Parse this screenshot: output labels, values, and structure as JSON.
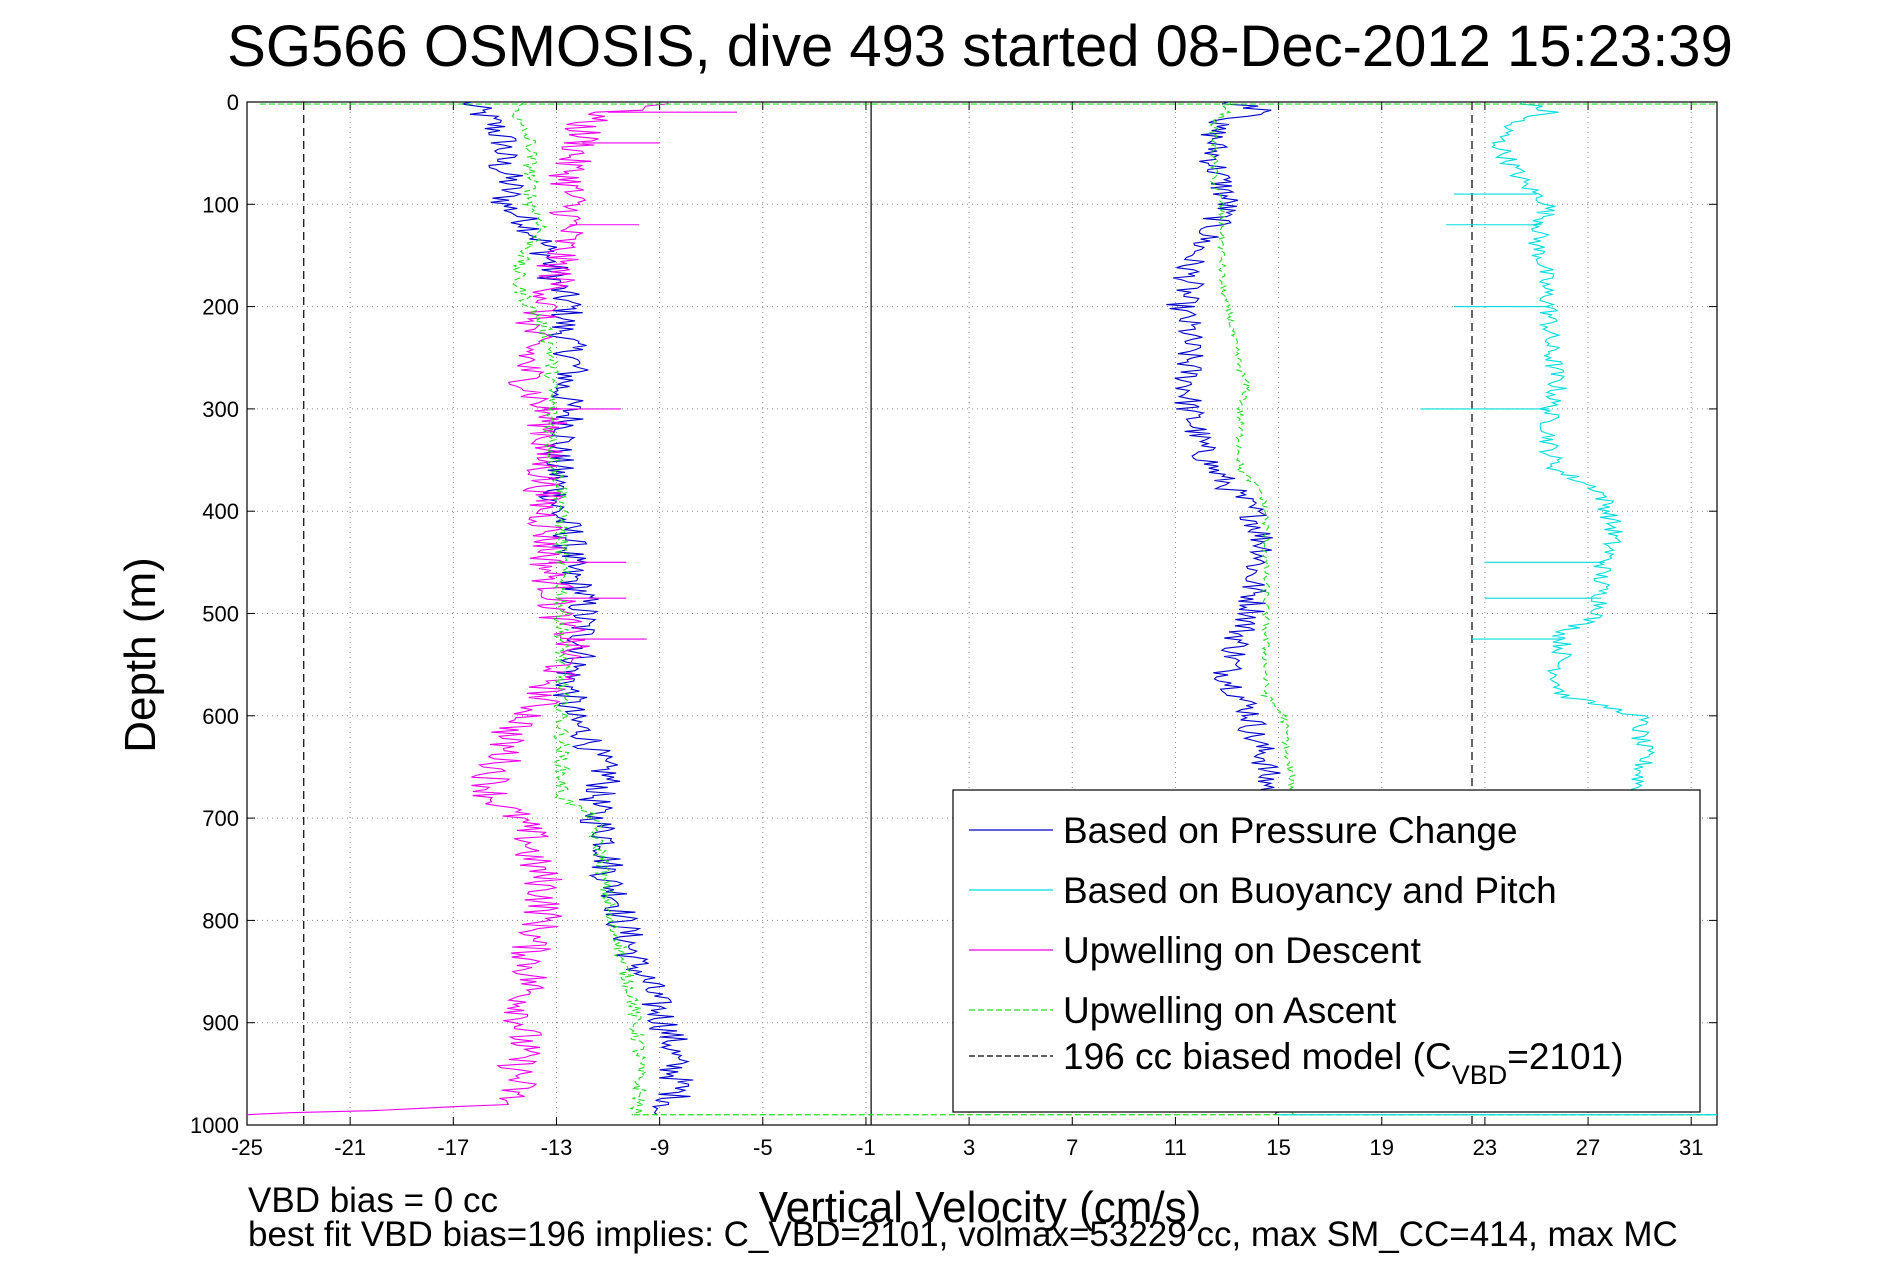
{
  "chart_data": {
    "type": "line",
    "title": "SG566 OSMOSIS, dive 493 started 08-Dec-2012 15:23:39",
    "xlabel": "Vertical Velocity (cm/s)",
    "ylabel": "Depth (m)",
    "xlim": [
      -25,
      32
    ],
    "ylim": [
      1000,
      0
    ],
    "y_reversed": true,
    "grid": true,
    "x_ticks": [
      -25,
      -21,
      -17,
      -13,
      -9,
      -5,
      -1,
      3,
      7,
      11,
      15,
      19,
      23,
      27,
      31
    ],
    "y_ticks": [
      0,
      100,
      200,
      300,
      400,
      500,
      600,
      700,
      800,
      900,
      1000
    ],
    "vertical_lines": [
      {
        "x": -0.8,
        "style": "solid",
        "color": "#000000"
      },
      {
        "x": -22.8,
        "style": "dashed",
        "color": "#000000"
      },
      {
        "x": 22.5,
        "style": "dashed",
        "color": "#000000"
      }
    ],
    "legend_position": "bottom-right",
    "series": [
      {
        "name": "Based on Pressure Change",
        "color": "#0000cc",
        "dash": "solid",
        "segments": [
          {
            "depth": [
              0,
              10,
              20,
              40,
              60,
              80,
              100,
              120,
              140,
              160,
              180,
              200,
              220,
              240,
              260,
              280,
              300,
              320,
              340,
              360,
              380,
              400,
              420,
              440,
              460,
              480,
              500,
              520,
              540,
              560,
              580,
              600,
              620,
              640,
              660,
              680,
              700,
              720,
              740,
              760,
              780,
              800,
              820,
              840,
              860,
              880,
              900,
              920,
              940,
              960,
              980,
              990
            ],
            "velocity": [
              -16.5,
              -16,
              -15.5,
              -15,
              -15.2,
              -14.8,
              -15,
              -14,
              -13.5,
              -13.2,
              -13,
              -12.5,
              -12.8,
              -12.5,
              -12.3,
              -12.8,
              -12.5,
              -12.5,
              -13,
              -13,
              -13,
              -13,
              -12.5,
              -12.5,
              -12.5,
              -12,
              -12,
              -12,
              -12,
              -12.5,
              -12.5,
              -12.5,
              -11.8,
              -11.5,
              -11,
              -11.5,
              -11.5,
              -11,
              -11,
              -11,
              -10.5,
              -10.5,
              -10.2,
              -10,
              -9.5,
              -9.2,
              -8.8,
              -8.5,
              -8.5,
              -8.3,
              -8.5,
              -9.5
            ],
            "noise": 0.7
          },
          {
            "depth": [
              0,
              10,
              20,
              40,
              60,
              80,
              100,
              120,
              140,
              160,
              180,
              200,
              220,
              240,
              260,
              280,
              300,
              320,
              340,
              360,
              380,
              400,
              420,
              440,
              460,
              480,
              500,
              520,
              540,
              560,
              580,
              600,
              620,
              640,
              660,
              680,
              990
            ],
            "velocity": [
              13,
              15,
              12.5,
              12.5,
              12.5,
              12.8,
              13,
              12.5,
              12,
              11.5,
              11.5,
              11.2,
              11.5,
              11.5,
              11.5,
              11.5,
              11.5,
              11.8,
              12,
              12.5,
              13.2,
              14,
              14.3,
              14.5,
              14,
              14,
              14,
              13.5,
              13.3,
              13,
              13.5,
              14,
              14,
              14.5,
              14.5,
              14.8,
              14.8
            ],
            "noise": 0.6
          }
        ]
      },
      {
        "name": "Based on Buoyancy and Pitch",
        "color": "#00dddd",
        "dash": "solid",
        "segments": [
          {
            "depth": [
              0,
              10,
              20,
              40,
              60,
              80,
              100,
              120,
              140,
              160,
              180,
              200,
              220,
              240,
              260,
              280,
              300,
              320,
              340,
              360,
              380,
              400,
              420,
              440,
              460,
              480,
              500,
              520,
              540,
              560,
              580,
              600,
              620,
              640,
              660,
              680
            ],
            "velocity": [
              24.5,
              25.5,
              24,
              23.5,
              24,
              24.5,
              25.5,
              25.2,
              25,
              25.3,
              25.3,
              25.5,
              25.5,
              25.5,
              25.7,
              25.8,
              25.5,
              25.5,
              25.5,
              25.8,
              27.5,
              27.8,
              28,
              27.8,
              27.5,
              27.5,
              27.5,
              26,
              26,
              25.8,
              26,
              29,
              29,
              29.2,
              29,
              29
            ],
            "noise": 0.4
          }
        ],
        "spikes": [
          {
            "depth": 90,
            "velocity": 21.8
          },
          {
            "depth": 120,
            "velocity": 21.5
          },
          {
            "depth": 200,
            "velocity": 21.8
          },
          {
            "depth": 300,
            "velocity": 20.5
          },
          {
            "depth": 450,
            "velocity": 23
          },
          {
            "depth": 485,
            "velocity": 23
          },
          {
            "depth": 525,
            "velocity": 22.5
          }
        ]
      },
      {
        "name": "Upwelling on Descent",
        "color": "#ee00ee",
        "dash": "solid",
        "segments": [
          {
            "depth": [
              0,
              10,
              20,
              40,
              60,
              80,
              100,
              120,
              140,
              160,
              180,
              200,
              220,
              240,
              260,
              280,
              300,
              320,
              340,
              360,
              380,
              400,
              420,
              440,
              460,
              480,
              500,
              520,
              540,
              560,
              580,
              600,
              620,
              640,
              660,
              680,
              700,
              720,
              740,
              760,
              780,
              800,
              820,
              840,
              860,
              880,
              900,
              920,
              940,
              960,
              980,
              990
            ],
            "velocity": [
              -8,
              -11,
              -12,
              -12,
              -12.5,
              -12.5,
              -12.5,
              -12.5,
              -12.8,
              -13,
              -13,
              -13.5,
              -14,
              -14,
              -14.2,
              -14,
              -13.5,
              -13.3,
              -13.5,
              -13.5,
              -13.5,
              -13.5,
              -13.3,
              -13.3,
              -13.3,
              -13,
              -13,
              -12.5,
              -12.5,
              -13,
              -13.5,
              -14,
              -15,
              -15,
              -15.5,
              -15.5,
              -14.5,
              -14,
              -14,
              -13.5,
              -13.5,
              -13.5,
              -14,
              -14,
              -14,
              -14.2,
              -14.3,
              -14.3,
              -14.5,
              -14.5,
              -15,
              -24.5
            ],
            "noise": 0.8
          }
        ],
        "spikes": [
          {
            "depth": 10,
            "velocity": -6
          },
          {
            "depth": 40,
            "velocity": -9
          },
          {
            "depth": 120,
            "velocity": -9.8
          },
          {
            "depth": 300,
            "velocity": -10.5
          },
          {
            "depth": 450,
            "velocity": -10.3
          },
          {
            "depth": 485,
            "velocity": -10.3
          },
          {
            "depth": 525,
            "velocity": -9.5
          }
        ]
      },
      {
        "name": "Upwelling on Ascent",
        "color": "#22dd22",
        "dash": "dashed",
        "segments": [
          {
            "depth": [
              0,
              10,
              20,
              40,
              60,
              80,
              100,
              120,
              140,
              160,
              180,
              200,
              220,
              240,
              260,
              280,
              300,
              320,
              340,
              360,
              380,
              400,
              420,
              440,
              460,
              480,
              500,
              520,
              540,
              560,
              580,
              600,
              620,
              640,
              660,
              680,
              700,
              720,
              740,
              760,
              780,
              800,
              820,
              840,
              860,
              880,
              900,
              920,
              940,
              960,
              980,
              990
            ],
            "velocity": [
              -14.5,
              -14.5,
              -14.5,
              -14,
              -14,
              -14,
              -14,
              -13.5,
              -14,
              -14.5,
              -14.5,
              -14,
              -13.5,
              -13.2,
              -13.2,
              -13.2,
              -13.2,
              -13.2,
              -13.2,
              -13,
              -12.8,
              -12.8,
              -12.8,
              -12.8,
              -12.8,
              -12.8,
              -12.8,
              -12.8,
              -12.8,
              -12.8,
              -12.8,
              -12.8,
              -12.8,
              -12.8,
              -12.8,
              -12.8,
              -11.5,
              -11.5,
              -11.2,
              -11.2,
              -11,
              -11,
              -10.5,
              -10.5,
              -10.2,
              -10,
              -10,
              -9.8,
              -9.8,
              -9.8,
              -9.8,
              -10
            ],
            "noise": 0.3
          },
          {
            "depth": [
              0,
              10,
              20,
              40,
              60,
              80,
              100,
              120,
              140,
              160,
              180,
              200,
              220,
              240,
              260,
              280,
              300,
              320,
              340,
              360,
              380,
              400,
              420,
              440,
              460,
              480,
              500,
              520,
              540,
              560,
              580,
              600,
              620,
              640,
              660,
              680,
              990
            ],
            "velocity": [
              13,
              13,
              12.5,
              12.5,
              12.5,
              12.5,
              12.8,
              12.8,
              12.8,
              12.8,
              12.8,
              13,
              13.2,
              13.3,
              13.5,
              13.8,
              13.5,
              13.5,
              13.5,
              13.5,
              14.3,
              14.5,
              14.5,
              14.5,
              14.5,
              14.5,
              14.5,
              14.5,
              14.5,
              14.5,
              14.5,
              15.2,
              15.3,
              15.3,
              15.5,
              15.5,
              15.5
            ],
            "noise": 0.15
          }
        ]
      },
      {
        "name": "196 cc biased model (C_VBD=2101)",
        "color": "#000000",
        "dash": "dashed",
        "segments": []
      }
    ],
    "legend_items": [
      {
        "text": "Based on Pressure Change",
        "color": "#0000cc",
        "dash": "solid"
      },
      {
        "text": "Based on Buoyancy and Pitch",
        "color": "#00dddd",
        "dash": "solid"
      },
      {
        "text": "Upwelling on Descent",
        "color": "#ee00ee",
        "dash": "solid"
      },
      {
        "text": "Upwelling on Ascent",
        "color": "#22dd22",
        "dash": "dashed"
      },
      {
        "text": "196 cc biased model (C",
        "sub": "VBD",
        "tail": "=2101)",
        "color": "#000000",
        "dash": "dashed"
      }
    ],
    "footer": {
      "line1": "VBD bias = 0 cc",
      "line2": "best fit VBD bias=196 implies: C_VBD=2101, volmax=53229 cc, max SM_CC=414, max MC"
    }
  }
}
